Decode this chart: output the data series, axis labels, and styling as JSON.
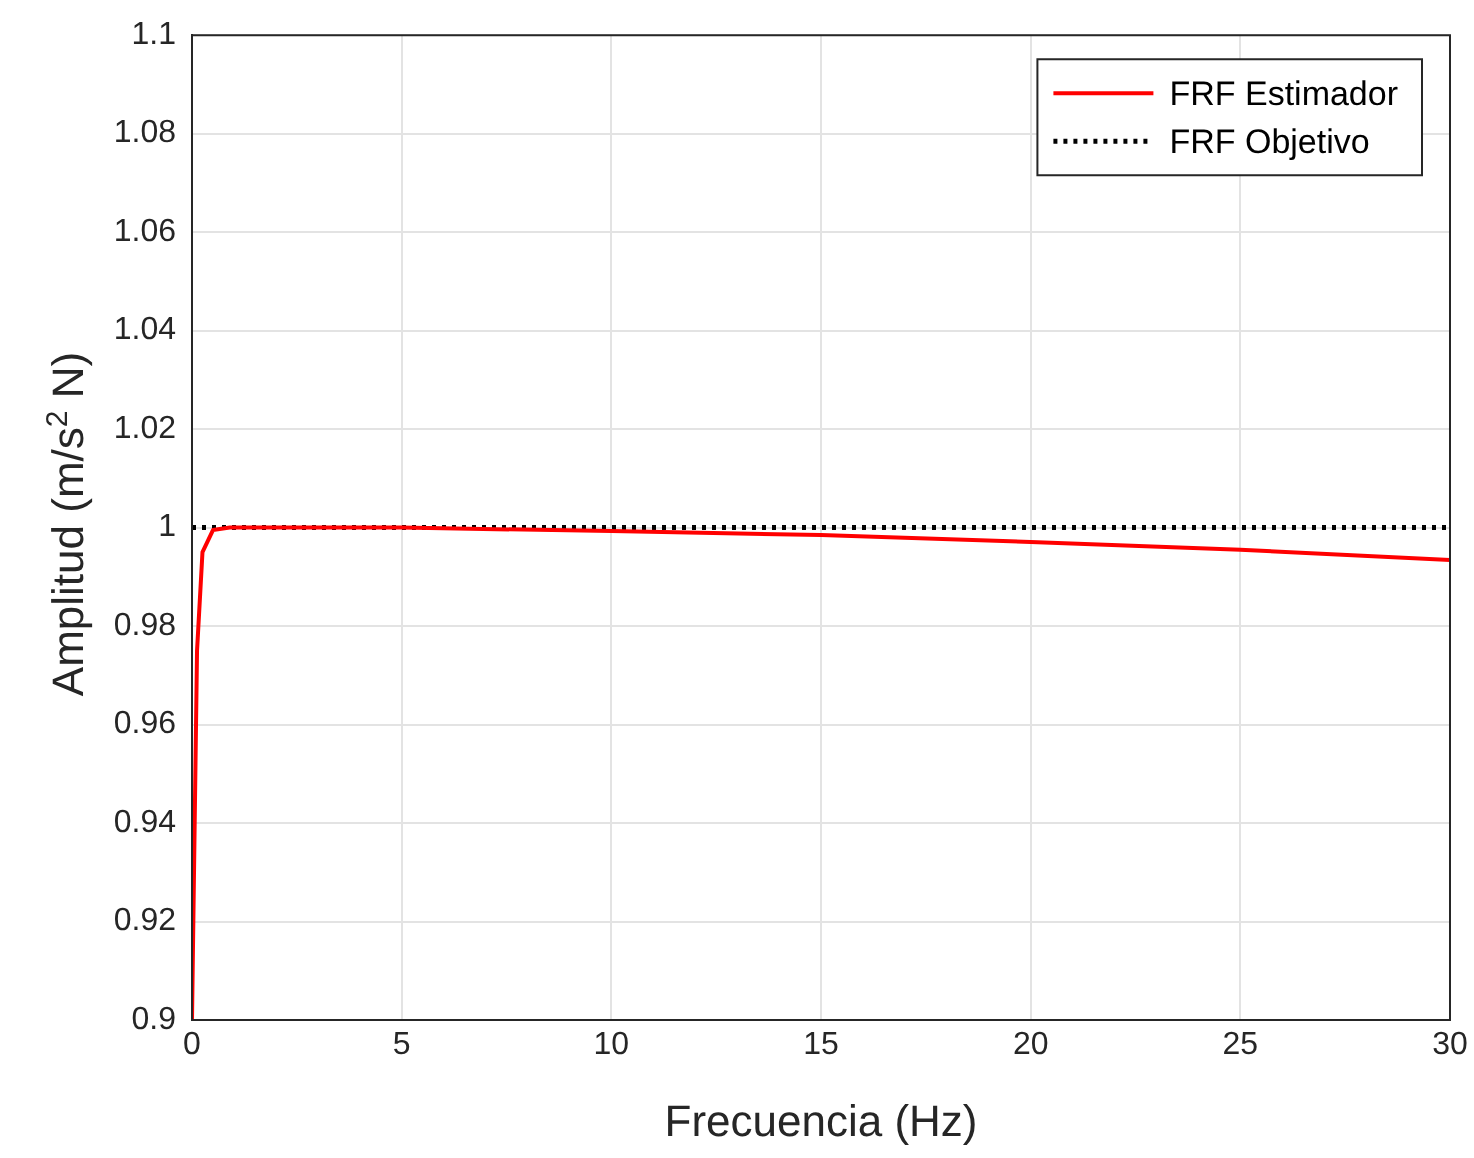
{
  "chart_data": {
    "type": "line",
    "xlabel": "Frecuencia (Hz)",
    "ylabel": "Amplitud (m/s$^{2}$ N)",
    "series": [
      {
        "name": "FRF Estimador",
        "color": "#ff0000",
        "line_style": "solid",
        "x": [
          0,
          0.12,
          0.25,
          0.5,
          0.9,
          2,
          5,
          10,
          15,
          20,
          25,
          30
        ],
        "values": [
          0.9,
          0.975,
          0.995,
          0.9995,
          1,
          1,
          1,
          0.9993,
          0.9985,
          0.9971,
          0.9955,
          0.9934
        ]
      },
      {
        "name": "FRF Objetivo",
        "color": "#000000",
        "line_style": "dotted",
        "x": [
          0,
          30
        ],
        "values": [
          1,
          1
        ]
      }
    ],
    "xlim": [
      0,
      30
    ],
    "xticks": [
      0,
      5,
      10,
      15,
      20,
      25,
      30
    ],
    "ylim": [
      0.9,
      1.1
    ],
    "yticks": [
      0.9,
      0.92,
      0.94,
      0.96,
      0.98,
      1,
      1.02,
      1.04,
      1.06,
      1.08,
      1.1
    ],
    "grid": true,
    "legend": "top right",
    "marker": "none"
  }
}
